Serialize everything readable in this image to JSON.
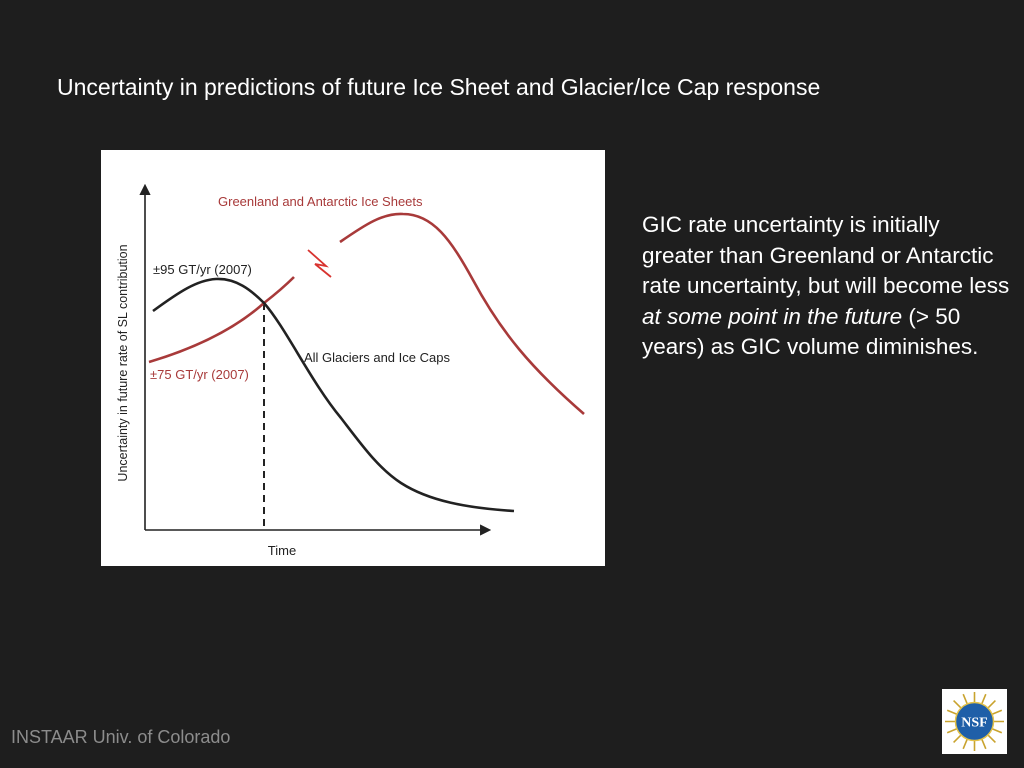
{
  "slide": {
    "title": "Uncertainty in predictions of future Ice Sheet and Glacier/Ice Cap response",
    "body_part1": "GIC rate uncertainty is initially greater than Greenland or Antarctic rate uncertainty, but will become less ",
    "body_italic": "at some point in the future",
    "body_part2": " (> 50 years) as GIC volume diminishes.",
    "footer": "INSTAAR Univ. of Colorado",
    "logo_text": "NSF"
  },
  "figure": {
    "y_axis_label": "Uncertainty in future rate of SL contribution",
    "x_axis_label": "Time",
    "series": [
      {
        "name": "Greenland and Antarctic Ice Sheets",
        "color": "#a83a3a"
      },
      {
        "name": "All Glaciers and Ice Caps",
        "color": "#222222"
      }
    ],
    "annotations": {
      "gic_initial": "±95 GT/yr (2007)",
      "ice_sheet_initial": "±75 GT/yr (2007)"
    },
    "colors": {
      "ice_sheet": "#a83a3a",
      "glacier": "#222222",
      "axis": "#222222"
    }
  }
}
